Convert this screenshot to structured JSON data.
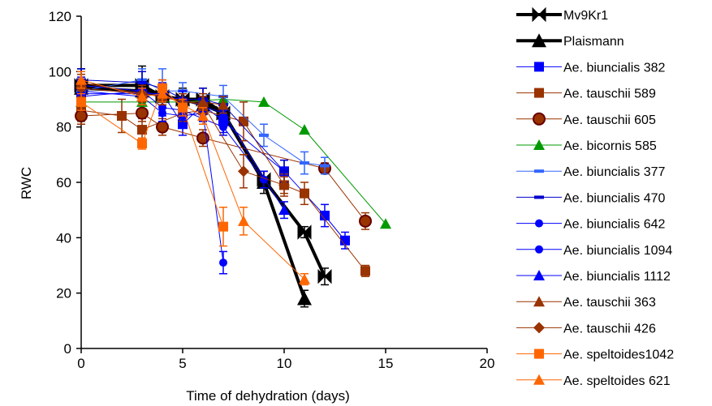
{
  "chart_data": {
    "type": "line",
    "xlabel": "Time of dehydration (days)",
    "ylabel": "RWC",
    "xlim": [
      0,
      20
    ],
    "ylim": [
      0,
      120
    ],
    "xticks": [
      0,
      5,
      10,
      15,
      20
    ],
    "yticks": [
      0,
      20,
      40,
      60,
      80,
      100,
      120
    ],
    "grid": false,
    "legend_position": "right",
    "series": [
      {
        "name": "Mv9Kr1",
        "color": "#000000",
        "marker": "bowtie",
        "width": 4,
        "x": [
          0,
          3,
          4,
          5,
          6,
          7,
          9,
          11,
          12
        ],
        "y": [
          95,
          95,
          91,
          90,
          90,
          85,
          61,
          42,
          26
        ],
        "err": [
          6,
          7,
          3,
          4,
          4,
          4,
          3,
          2,
          3
        ]
      },
      {
        "name": "Plaismann",
        "color": "#000000",
        "marker": "triangle",
        "width": 4,
        "x": [
          0,
          3,
          4,
          5,
          6,
          7,
          9,
          11
        ],
        "y": [
          94,
          93,
          91,
          90,
          88,
          85,
          60,
          18
        ],
        "err": [
          3,
          4,
          3,
          3,
          3,
          4,
          4,
          3
        ]
      },
      {
        "name": "Ae. biuncialis 382",
        "color": "#0000ff",
        "marker": "square",
        "width": 1,
        "x": [
          0,
          3,
          4,
          5,
          6,
          7,
          10,
          12,
          13
        ],
        "y": [
          92,
          92,
          92,
          81,
          88,
          82,
          64,
          48,
          39
        ],
        "err": [
          5,
          4,
          4,
          4,
          3,
          4,
          4,
          4,
          3
        ]
      },
      {
        "name": "Ae. tauschii 589",
        "color": "#993300",
        "marker": "square",
        "width": 1,
        "x": [
          0,
          2,
          3,
          5,
          6,
          8,
          10,
          11,
          14
        ],
        "y": [
          86,
          84,
          79,
          85,
          86,
          82,
          59,
          56,
          28
        ],
        "err": [
          4,
          6,
          4,
          3,
          4,
          7,
          4,
          4,
          2
        ]
      },
      {
        "name": "Ae. tauschii 605",
        "color": "#993300",
        "marker": "circle-red",
        "width": 1,
        "x": [
          0,
          3,
          4,
          6,
          12,
          14
        ],
        "y": [
          84,
          85,
          80,
          76,
          65,
          46
        ],
        "err": [
          3,
          3,
          3,
          3,
          2,
          3
        ]
      },
      {
        "name": "Ae. bicornis 585",
        "color": "#009900",
        "marker": "triangle",
        "width": 1,
        "x": [
          0,
          3,
          5,
          7,
          9,
          11,
          15
        ],
        "y": [
          89,
          89,
          89,
          90,
          89,
          79,
          45
        ],
        "err": [
          0,
          0,
          0,
          0,
          0,
          0,
          0
        ]
      },
      {
        "name": "Ae. biuncialis 377",
        "color": "#3366ff",
        "marker": "dash",
        "width": 1,
        "x": [
          0,
          3,
          4,
          5,
          7,
          9,
          11,
          12
        ],
        "y": [
          93,
          97,
          93,
          93,
          91,
          77,
          67,
          66
        ],
        "err": [
          3,
          4,
          8,
          3,
          4,
          4,
          4,
          3
        ]
      },
      {
        "name": "Ae. biuncialis 470",
        "color": "#0000cc",
        "marker": "dash",
        "width": 1,
        "x": [
          0,
          3,
          4,
          5,
          6,
          7,
          10
        ],
        "y": [
          97,
          96,
          94,
          90,
          90,
          88,
          64
        ],
        "err": [
          4,
          4,
          3,
          3,
          4,
          3,
          4
        ]
      },
      {
        "name": "Ae. biuncialis 642",
        "color": "#0000ff",
        "marker": "circle",
        "width": 1,
        "x": [
          0,
          3,
          4,
          5,
          6,
          7
        ],
        "y": [
          93,
          91,
          85,
          84,
          85,
          31
        ],
        "err": [
          3,
          3,
          3,
          3,
          3,
          4
        ]
      },
      {
        "name": "Ae. biuncialis 1094",
        "color": "#0000ff",
        "marker": "circle",
        "width": 1,
        "x": [
          0,
          3,
          4,
          5,
          7,
          9
        ],
        "y": [
          91,
          93,
          87,
          86,
          80,
          61
        ],
        "err": [
          3,
          3,
          3,
          3,
          3,
          3
        ]
      },
      {
        "name": "Ae. biuncialis 1112",
        "color": "#0000ff",
        "marker": "triangle",
        "width": 1,
        "x": [
          0,
          3,
          4,
          5,
          7,
          10
        ],
        "y": [
          95,
          93,
          91,
          90,
          85,
          50
        ],
        "err": [
          3,
          3,
          3,
          3,
          3,
          3
        ]
      },
      {
        "name": "Ae. tauschii 363",
        "color": "#993300",
        "marker": "triangle",
        "width": 1,
        "x": [
          0,
          3,
          4,
          5,
          6,
          7
        ],
        "y": [
          96,
          92,
          91,
          89,
          89,
          88
        ],
        "err": [
          3,
          3,
          3,
          3,
          3,
          3
        ]
      },
      {
        "name": "Ae. tauschii 426",
        "color": "#993300",
        "marker": "diamond",
        "width": 1,
        "x": [
          0,
          3,
          4,
          6,
          8,
          10
        ],
        "y": [
          94,
          92,
          91,
          88,
          64,
          59
        ],
        "err": [
          3,
          3,
          3,
          3,
          6,
          3
        ]
      },
      {
        "name": "Ae. speltoides1042",
        "color": "#ff6600",
        "marker": "square",
        "width": 1,
        "x": [
          0,
          3,
          4,
          5,
          7
        ],
        "y": [
          89,
          74,
          94,
          87,
          44
        ],
        "err": [
          3,
          2,
          3,
          3,
          7
        ]
      },
      {
        "name": "Ae. speltoides 621",
        "color": "#ff6600",
        "marker": "triangle",
        "width": 1,
        "x": [
          0,
          3,
          4,
          6,
          8,
          11
        ],
        "y": [
          97,
          91,
          92,
          84,
          46,
          25
        ],
        "err": [
          3,
          3,
          3,
          3,
          5,
          2
        ]
      }
    ]
  }
}
